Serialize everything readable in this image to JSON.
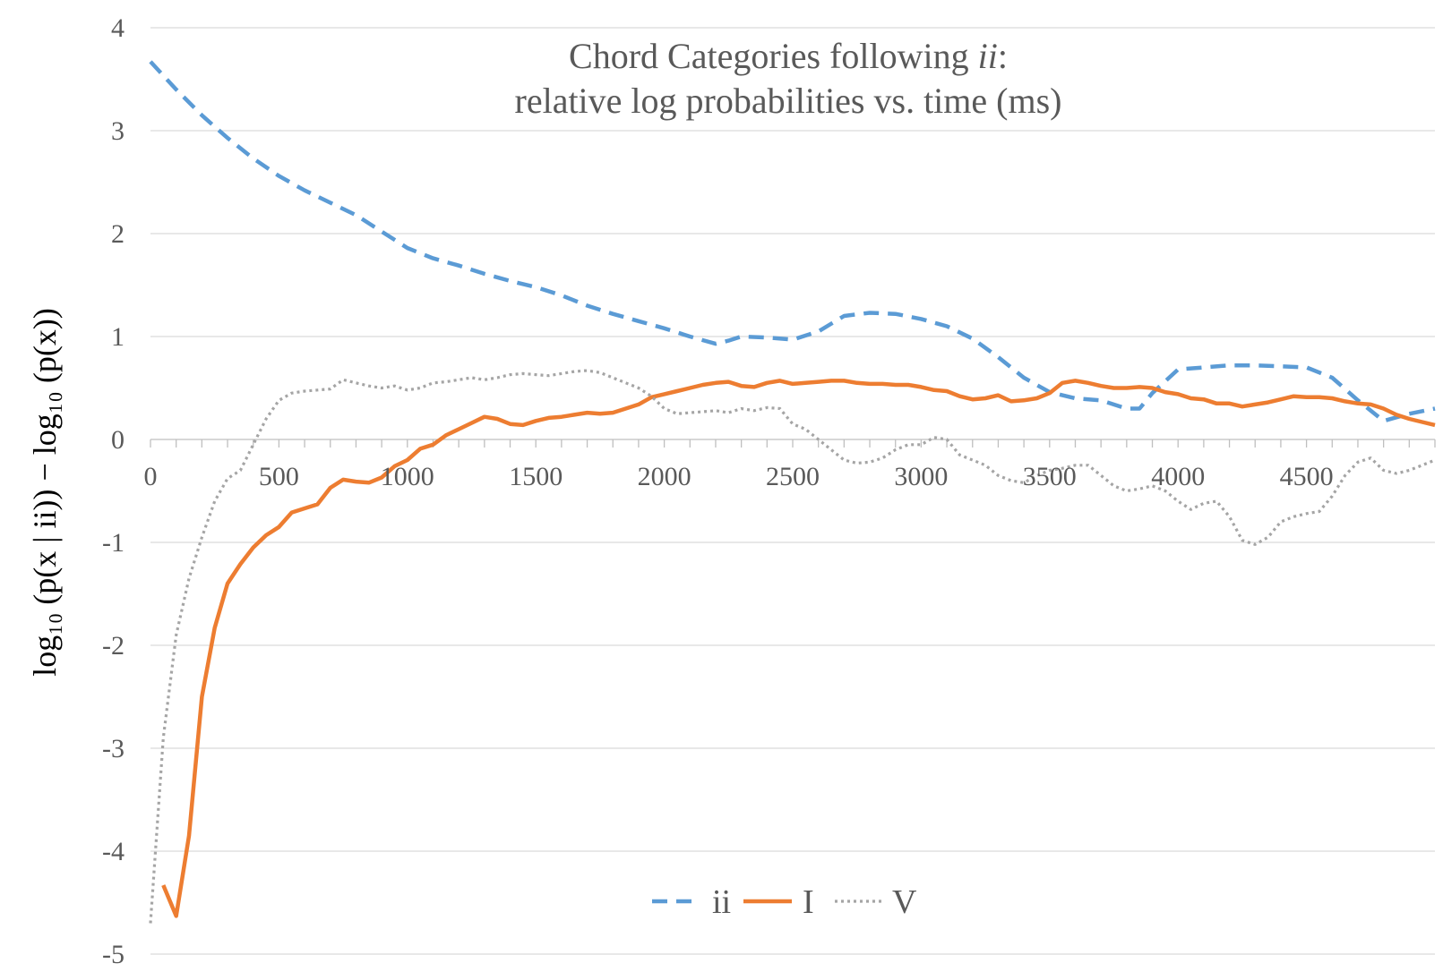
{
  "chart_data": {
    "type": "line",
    "title_line1_main": "Chord Categories following ",
    "title_line1_italic": "ii",
    "title_line1_tail": ":",
    "title_line2": "relative log probabilities vs. time (ms)",
    "ylabel": "log₁₀ (p(x | ii)) − log₁₀ (p(x))",
    "xlabel": "",
    "xlim": [
      0,
      5000
    ],
    "ylim": [
      -5,
      4
    ],
    "xticks": [
      "0",
      "500",
      "1000",
      "1500",
      "2000",
      "2500",
      "3000",
      "3500",
      "4000",
      "4500"
    ],
    "yticks": [
      "4",
      "3",
      "2",
      "1",
      "0",
      "-1",
      "-2",
      "-3",
      "-4",
      "-5"
    ],
    "grid": true,
    "legend_position": "bottom-center",
    "series": [
      {
        "name": "ii",
        "color": "#5b9bd5",
        "style": "dashed",
        "x": [
          0,
          100,
          200,
          300,
          400,
          500,
          600,
          700,
          800,
          900,
          1000,
          1100,
          1200,
          1300,
          1400,
          1500,
          1600,
          1700,
          1800,
          1900,
          2000,
          2100,
          2200,
          2250,
          2300,
          2400,
          2500,
          2600,
          2700,
          2800,
          2900,
          3000,
          3100,
          3200,
          3300,
          3400,
          3500,
          3600,
          3700,
          3800,
          3850,
          3900,
          4000,
          4100,
          4200,
          4300,
          4400,
          4500,
          4600,
          4700,
          4800,
          4900,
          5000
        ],
        "y": [
          3.67,
          3.4,
          3.15,
          2.93,
          2.73,
          2.56,
          2.42,
          2.3,
          2.18,
          2.02,
          1.86,
          1.76,
          1.69,
          1.61,
          1.54,
          1.48,
          1.4,
          1.3,
          1.22,
          1.15,
          1.08,
          1.0,
          0.93,
          0.96,
          1.0,
          0.99,
          0.97,
          1.05,
          1.2,
          1.23,
          1.22,
          1.17,
          1.1,
          0.98,
          0.8,
          0.6,
          0.46,
          0.4,
          0.38,
          0.3,
          0.3,
          0.45,
          0.68,
          0.7,
          0.72,
          0.72,
          0.71,
          0.7,
          0.6,
          0.38,
          0.18,
          0.25,
          0.3
        ]
      },
      {
        "name": "I",
        "color": "#ed7d31",
        "style": "solid",
        "x": [
          50,
          100,
          150,
          200,
          250,
          300,
          350,
          400,
          450,
          500,
          550,
          600,
          650,
          700,
          750,
          800,
          850,
          900,
          950,
          1000,
          1050,
          1100,
          1150,
          1200,
          1250,
          1300,
          1350,
          1400,
          1450,
          1500,
          1550,
          1600,
          1650,
          1700,
          1750,
          1800,
          1850,
          1900,
          1950,
          2000,
          2050,
          2100,
          2150,
          2200,
          2250,
          2300,
          2350,
          2400,
          2450,
          2500,
          2550,
          2600,
          2650,
          2700,
          2750,
          2800,
          2850,
          2900,
          2950,
          3000,
          3050,
          3100,
          3150,
          3200,
          3250,
          3300,
          3350,
          3400,
          3450,
          3500,
          3550,
          3600,
          3650,
          3700,
          3750,
          3800,
          3850,
          3900,
          3950,
          4000,
          4050,
          4100,
          4150,
          4200,
          4250,
          4300,
          4350,
          4400,
          4450,
          4500,
          4550,
          4600,
          4650,
          4700,
          4750,
          4800,
          4850,
          4900,
          4950,
          5000
        ],
        "y": [
          -4.33,
          -4.63,
          -3.85,
          -2.5,
          -1.83,
          -1.4,
          -1.21,
          -1.05,
          -0.93,
          -0.85,
          -0.71,
          -0.67,
          -0.63,
          -0.47,
          -0.39,
          -0.41,
          -0.42,
          -0.37,
          -0.26,
          -0.2,
          -0.09,
          -0.05,
          0.04,
          0.1,
          0.16,
          0.22,
          0.2,
          0.15,
          0.14,
          0.18,
          0.21,
          0.22,
          0.24,
          0.26,
          0.25,
          0.26,
          0.3,
          0.34,
          0.41,
          0.44,
          0.47,
          0.5,
          0.53,
          0.55,
          0.56,
          0.52,
          0.51,
          0.55,
          0.57,
          0.54,
          0.55,
          0.56,
          0.57,
          0.57,
          0.55,
          0.54,
          0.54,
          0.53,
          0.53,
          0.51,
          0.48,
          0.47,
          0.42,
          0.39,
          0.4,
          0.43,
          0.37,
          0.38,
          0.4,
          0.45,
          0.55,
          0.57,
          0.55,
          0.52,
          0.5,
          0.5,
          0.51,
          0.5,
          0.46,
          0.44,
          0.4,
          0.39,
          0.35,
          0.35,
          0.32,
          0.34,
          0.36,
          0.39,
          0.42,
          0.41,
          0.41,
          0.4,
          0.37,
          0.35,
          0.34,
          0.3,
          0.24,
          0.2,
          0.17,
          0.14
        ]
      },
      {
        "name": "V",
        "color": "#a5a5a5",
        "style": "dotted",
        "x": [
          0,
          50,
          100,
          150,
          200,
          250,
          300,
          350,
          400,
          450,
          500,
          550,
          600,
          650,
          700,
          750,
          800,
          850,
          900,
          950,
          1000,
          1050,
          1100,
          1150,
          1200,
          1250,
          1300,
          1350,
          1400,
          1450,
          1500,
          1550,
          1600,
          1650,
          1700,
          1750,
          1800,
          1850,
          1900,
          1950,
          2000,
          2050,
          2100,
          2150,
          2200,
          2250,
          2300,
          2350,
          2400,
          2450,
          2500,
          2550,
          2600,
          2650,
          2700,
          2750,
          2800,
          2850,
          2900,
          2950,
          3000,
          3050,
          3100,
          3150,
          3200,
          3250,
          3300,
          3350,
          3400,
          3450,
          3500,
          3550,
          3600,
          3650,
          3700,
          3750,
          3800,
          3850,
          3900,
          3950,
          4000,
          4050,
          4100,
          4150,
          4200,
          4250,
          4300,
          4350,
          4400,
          4450,
          4500,
          4550,
          4600,
          4650,
          4700,
          4750,
          4800,
          4850,
          4900,
          4950,
          5000
        ],
        "y": [
          -4.7,
          -2.9,
          -1.9,
          -1.35,
          -0.95,
          -0.6,
          -0.38,
          -0.3,
          -0.05,
          0.2,
          0.38,
          0.45,
          0.47,
          0.48,
          0.49,
          0.58,
          0.55,
          0.52,
          0.5,
          0.52,
          0.48,
          0.5,
          0.55,
          0.56,
          0.58,
          0.6,
          0.58,
          0.6,
          0.63,
          0.64,
          0.63,
          0.62,
          0.64,
          0.66,
          0.67,
          0.65,
          0.6,
          0.55,
          0.5,
          0.42,
          0.3,
          0.25,
          0.26,
          0.27,
          0.28,
          0.26,
          0.3,
          0.28,
          0.31,
          0.3,
          0.15,
          0.1,
          0.0,
          -0.1,
          -0.2,
          -0.23,
          -0.22,
          -0.18,
          -0.1,
          -0.05,
          -0.05,
          0.02,
          0.0,
          -0.15,
          -0.2,
          -0.25,
          -0.35,
          -0.4,
          -0.42,
          -0.35,
          -0.3,
          -0.28,
          -0.25,
          -0.25,
          -0.35,
          -0.45,
          -0.5,
          -0.48,
          -0.45,
          -0.5,
          -0.6,
          -0.68,
          -0.62,
          -0.6,
          -0.75,
          -0.98,
          -1.02,
          -0.95,
          -0.8,
          -0.75,
          -0.72,
          -0.7,
          -0.55,
          -0.35,
          -0.22,
          -0.18,
          -0.3,
          -0.33,
          -0.3,
          -0.25,
          -0.2
        ]
      }
    ]
  }
}
